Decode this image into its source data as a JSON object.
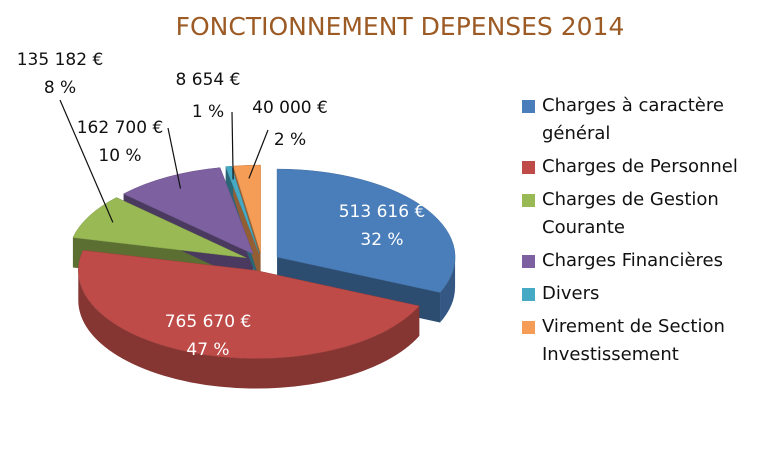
{
  "chart_data": {
    "type": "pie",
    "title": "FONCTIONNEMENT DEPENSES 2014",
    "categories": [
      "Charges à caractère général",
      "Charges de Personnel",
      "Charges de Gestion Courante",
      "Charges Financières",
      "Divers",
      "Virement de Section Investissement"
    ],
    "values": [
      513616,
      765670,
      135182,
      162700,
      8654,
      40000
    ],
    "value_labels": [
      "513 616 €",
      "765 670 €",
      "135 182 €",
      "162 700 €",
      "8 654 €",
      "40 000 €"
    ],
    "percents": [
      32,
      47,
      8,
      10,
      1,
      2
    ],
    "percent_labels": [
      "32 %",
      "47 %",
      "8 %",
      "10 %",
      "1 %",
      "2 %"
    ],
    "colors": [
      "#4a7ebb",
      "#be4b48",
      "#98b954",
      "#7d60a0",
      "#46aac5",
      "#f59d56"
    ],
    "legend": "right"
  }
}
